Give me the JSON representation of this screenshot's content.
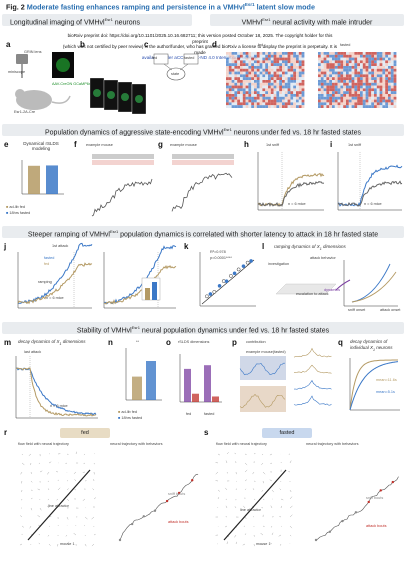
{
  "figure": {
    "number": "Fig. 2",
    "title": "Moderate fasting enhances ramping and persistence in a VMHvl",
    "title_sup": "Esr1",
    "title_tail": " latent slow mode"
  },
  "preprint_notice": {
    "line1": "bioRxiv preprint doi: https://doi.org/10.1101/2025.10.16.682711; this version posted October 18, 2025. The copyright holder for this preprint",
    "line2": "(which was not certified by peer review) is the author/funder, who has granted bioRxiv a license to display the preprint in perpetuity. It is made",
    "line3": "available under aCC-BY-NC-ND 4.0 International license."
  },
  "sections": {
    "s1_left": "Longitudinal imaging of VMHvl",
    "s1_left_sup": "Esr1",
    "s1_left_tail": " neurons",
    "s1_right": "VMHvl",
    "s1_right_sup": "Esr1",
    "s1_right_tail": " neural activity with male intruder",
    "s2": "Population dynamics of aggressive state-encoding VMHvl",
    "s2_sup": "Esr1",
    "s2_tail": " neurons under fed vs. 18 hr fasted states",
    "s3": "Steeper ramping of VMHvl",
    "s3_sup": "Esr1",
    "s3_tail": " population dynamics is correlated with shorter latency to attack in 18 hr fasted state",
    "s4": "Stability of VMHvl",
    "s4_sup": "Esr1",
    "s4_tail": " neural population dynamics under fed vs. 18 hr fasted states"
  },
  "panel_letters": [
    "a",
    "b",
    "c",
    "d",
    "e",
    "f",
    "g",
    "h",
    "i",
    "j",
    "k",
    "l",
    "m",
    "n",
    "o",
    "p",
    "q",
    "r",
    "s"
  ],
  "labels": {
    "a_miniscope": "miniscope",
    "a_grin": "GRIN lens",
    "a_virus": "AAV-CreON GCaMP6m",
    "a_mouse": "Esr1-2A-Cre",
    "a_vmhvl": "VMHvl",
    "c_fed": "fed",
    "c_fasted": "fasted",
    "c_state": "state",
    "e_title": "Dynamical rSLDS modeling",
    "e_ylabel": "variance explained",
    "e_adlib": "ad-lib fed",
    "e_fasted": "18hrs fasted",
    "f_title": "example mouse",
    "f_fed": "fed",
    "f_sniff": "sniff",
    "f_attack": "attack",
    "g_title": "example mouse",
    "g_fasted": "fasted",
    "h_first_sniff": "1st sniff",
    "h_n": "n = 6 mice",
    "i_first_sniff": "1st sniff",
    "i_n": "n = 6 mice",
    "j_first_attack": "1st attack",
    "j_ramping": "ramping",
    "j_n": "n = 6 mice",
    "j_fasted": "fasted",
    "j_fed": "fed",
    "k_r2": "R²=0.978",
    "k_p": "p=0.0001****",
    "k_mouse": "mouse#",
    "k_fed": "fed",
    "k_fasted": "fasted",
    "l_title": "ramping dynamics of X",
    "l_title_tail": " dimensions",
    "l_investigation": "investigation",
    "l_attack_behavior": "attack behavior",
    "l_dynamics": "dynamics",
    "l_escalation": "escalation to attack",
    "l_sniff_onset": "sniff onset",
    "l_attack_onset": "attack onset",
    "m_title": "decay dynamics of X",
    "m_title_tail": " dimensions",
    "m_last_attack": "last attack",
    "m_n": "n = 6 mice",
    "n_adlib": "ad-lib fed",
    "n_fasted": "18hrs fasted",
    "o_title": "rSLDS dimensions",
    "o_fed": "fed",
    "o_fasted": "fasted",
    "p_contribution": "contribution",
    "p_example": "example mouse(fasted)",
    "q_title": "decay dynamics of",
    "q_title2": "individual X",
    "q_title2_tail": " neurons",
    "q_mean1": "mean",
    "q_mean1v": "=11.6s",
    "q_mean2": "mean",
    "q_mean2v": "=5.1s",
    "r_fed": "fed",
    "s_fasted": "fasted",
    "r_flow": "flow field with neural trajectory",
    "r_neural": "neural trajectory with behaviors",
    "r_line_attractor": "line attractor",
    "s_line_attractor": "line attractor",
    "sniff_bouts": "sniff bouts",
    "attack_bouts": "attack bouts",
    "mouse1": "mouse 1",
    "ram_label": "ramping rate",
    "stars": "**"
  },
  "colors": {
    "fasted": "#3b78c7",
    "fed": "#b49a64",
    "attack": "#c0302a",
    "sniff": "#8a8a8a",
    "band": "#e9ecef",
    "title_blue": "#2a6fb0"
  },
  "chart_data": [
    {
      "type": "bar",
      "panel": "e",
      "ylabel": "variance explained",
      "categories": [
        "ad-lib fed",
        "18hrs fasted"
      ],
      "values": [
        0.83,
        0.84
      ],
      "ylim": [
        0,
        1
      ]
    },
    {
      "type": "bar",
      "panel": "n",
      "ylabel": "AUC after last attack offset",
      "categories": [
        "ad-lib fed",
        "18hrs fasted"
      ],
      "values": [
        0.45,
        0.75
      ],
      "significance": "**"
    },
    {
      "type": "scatter",
      "panel": "k",
      "r2": 0.978,
      "p": "0.0001****",
      "xlabel": "latency to 1st attack (from 1st sniff, s)",
      "ylabel": "latency to peak of X1 dimension"
    }
  ]
}
